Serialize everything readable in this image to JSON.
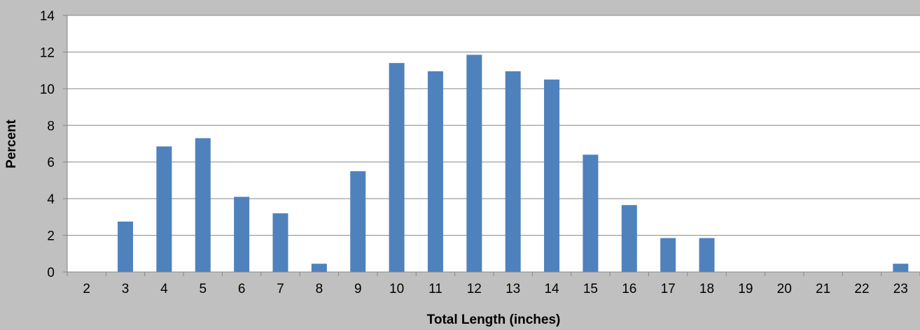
{
  "chart_data": {
    "type": "bar",
    "title": "",
    "xlabel": "Total Length (inches)",
    "ylabel": "Percent",
    "categories": [
      "2",
      "3",
      "4",
      "5",
      "6",
      "7",
      "8",
      "9",
      "10",
      "11",
      "12",
      "13",
      "14",
      "15",
      "16",
      "17",
      "18",
      "19",
      "20",
      "21",
      "22",
      "23"
    ],
    "values": [
      0,
      2.75,
      6.85,
      7.3,
      4.1,
      3.2,
      0.45,
      5.5,
      11.4,
      10.95,
      11.85,
      10.95,
      10.5,
      6.4,
      3.65,
      1.85,
      1.85,
      0,
      0,
      0,
      0,
      0.45
    ],
    "ylim": [
      0,
      14
    ],
    "yticks": [
      0,
      2,
      4,
      6,
      8,
      10,
      12,
      14
    ],
    "grid": true,
    "legend": "none",
    "colors": {
      "bar": "#4f81bd",
      "plot_background": "#ffffff",
      "chart_background": "#c0c0c0",
      "gridline": "#868686"
    }
  }
}
